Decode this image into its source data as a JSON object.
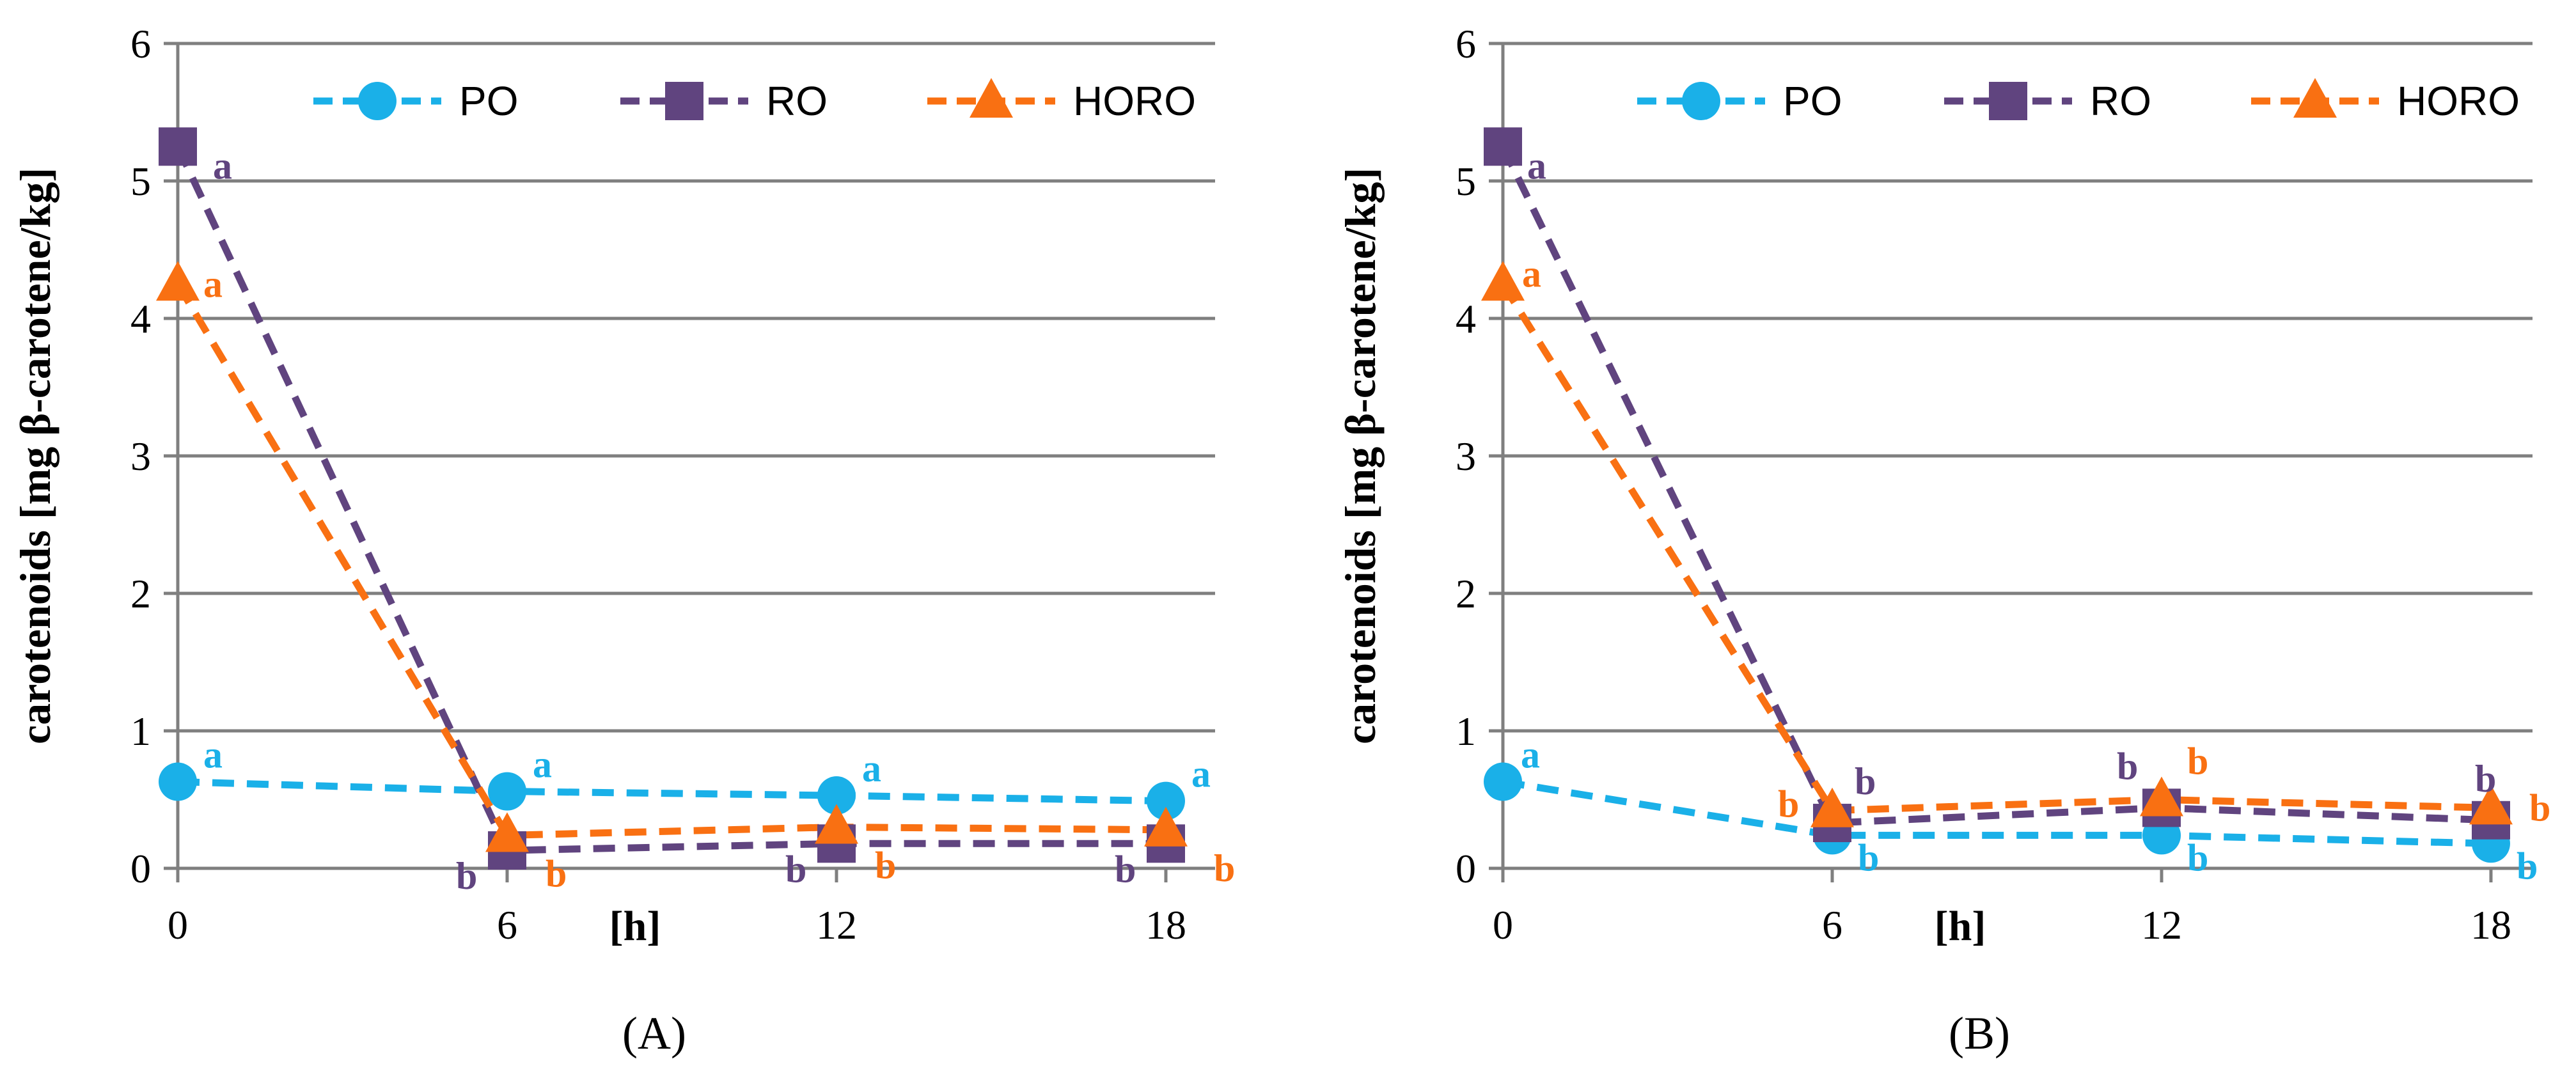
{
  "figure": {
    "panels": [
      "(A)",
      "(B)"
    ]
  },
  "colors": {
    "PO": "#1ab0e8",
    "RO": "#60447f",
    "HORO": "#f97012",
    "grid": "#7f7f7f",
    "axis": "#7f7f7f"
  },
  "chart_data": [
    {
      "type": "line",
      "panel_label": "(A)",
      "title": "",
      "xlabel": "[h]",
      "ylabel": "carotenoids [mg β-carotene/kg]",
      "x": [
        0,
        6,
        12,
        18
      ],
      "x_tick_labels": [
        "0",
        "6",
        "12",
        "18"
      ],
      "y_tick_labels": [
        "0",
        "1",
        "2",
        "3",
        "4",
        "5",
        "6"
      ],
      "ylim": [
        0,
        6
      ],
      "xlim": [
        0,
        19
      ],
      "grid": true,
      "legend": "top-center",
      "series": [
        {
          "name": "PO",
          "marker": "circle",
          "values": [
            0.63,
            0.56,
            0.53,
            0.49
          ],
          "letters": [
            "a",
            "a",
            "a",
            "a"
          ]
        },
        {
          "name": "RO",
          "marker": "square",
          "values": [
            5.25,
            0.13,
            0.18,
            0.18
          ],
          "letters": [
            "a",
            "b",
            "b",
            "b"
          ]
        },
        {
          "name": "HORO",
          "marker": "triangle",
          "values": [
            4.25,
            0.24,
            0.3,
            0.28
          ],
          "letters": [
            "a",
            "b",
            "b",
            "b"
          ]
        }
      ]
    },
    {
      "type": "line",
      "panel_label": "(B)",
      "title": "",
      "xlabel": "[h]",
      "ylabel": "carotenoids [mg β-carotene/kg]",
      "x": [
        0,
        6,
        12,
        18
      ],
      "x_tick_labels": [
        "0",
        "6",
        "12",
        "18"
      ],
      "y_tick_labels": [
        "0",
        "1",
        "2",
        "3",
        "4",
        "5",
        "6"
      ],
      "ylim": [
        0,
        6
      ],
      "xlim": [
        0,
        19
      ],
      "grid": true,
      "legend": "top-center",
      "series": [
        {
          "name": "PO",
          "marker": "circle",
          "values": [
            0.63,
            0.24,
            0.24,
            0.18
          ],
          "letters": [
            "a",
            "b",
            "b",
            "b"
          ]
        },
        {
          "name": "RO",
          "marker": "square",
          "values": [
            5.25,
            0.33,
            0.44,
            0.35
          ],
          "letters": [
            "a",
            "b",
            "b",
            "b"
          ]
        },
        {
          "name": "HORO",
          "marker": "triangle",
          "values": [
            4.25,
            0.42,
            0.5,
            0.44
          ],
          "letters": [
            "a",
            "b",
            "b",
            "b"
          ]
        }
      ]
    }
  ]
}
